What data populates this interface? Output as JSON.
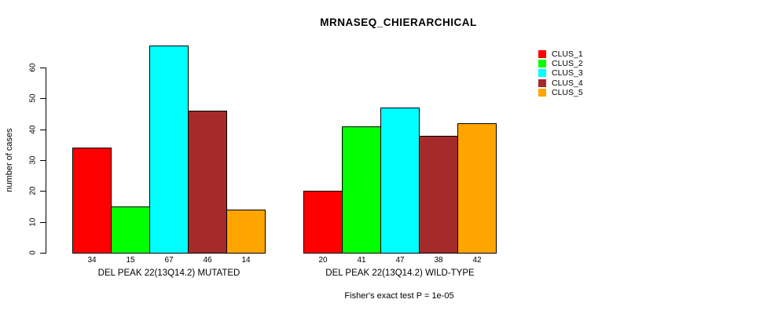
{
  "title": "MRNASEQ_CHIERARCHICAL",
  "chart_data": {
    "type": "bar",
    "title": "MRNASEQ_CHIERARCHICAL",
    "ylabel": "number of cases",
    "xlabel": "",
    "ylim": [
      0,
      67
    ],
    "yticks": [
      0,
      10,
      20,
      30,
      40,
      50,
      60
    ],
    "grid": false,
    "legend_position": "top-right",
    "series": [
      {
        "name": "CLUS_1",
        "color": "#FF0000"
      },
      {
        "name": "CLUS_2",
        "color": "#00FF00"
      },
      {
        "name": "CLUS_3",
        "color": "#00FFFF"
      },
      {
        "name": "CLUS_4",
        "color": "#A52A2A"
      },
      {
        "name": "CLUS_5",
        "color": "#FFA500"
      }
    ],
    "groups": [
      {
        "label": "DEL PEAK 22(13Q14.2) MUTATED",
        "values": [
          34,
          15,
          67,
          46,
          14
        ]
      },
      {
        "label": "DEL PEAK 22(13Q14.2) WILD-TYPE",
        "values": [
          20,
          41,
          47,
          38,
          42
        ]
      }
    ],
    "footnote": "Fisher's exact test P = 1e-05"
  }
}
